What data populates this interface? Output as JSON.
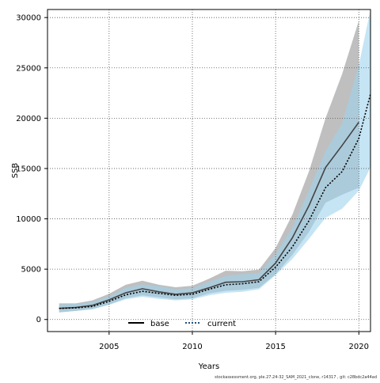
{
  "chart_data": {
    "type": "line",
    "xlabel": "Years",
    "ylabel": "SSB",
    "xlim": [
      2001.3,
      2020.7
    ],
    "ylim": [
      -1200,
      30800
    ],
    "x_ticks": [
      2005,
      2010,
      2015,
      2020
    ],
    "y_ticks": [
      0,
      5000,
      10000,
      15000,
      20000,
      25000,
      30000
    ],
    "grid": true,
    "legend_position": "bottom-left",
    "footer": "stockassessment.org, ple.27.24-32_SAM_2021_clone, r14317 , git: c28bdc2a44ad",
    "series": [
      {
        "name": "base",
        "color": "#444444",
        "band_color": "#bfbfbf",
        "line_style": "solid",
        "x": [
          2002,
          2003,
          2004,
          2005,
          2006,
          2007,
          2008,
          2009,
          2010,
          2011,
          2012,
          2013,
          2014,
          2015,
          2016,
          2017,
          2018,
          2019,
          2020
        ],
        "values": [
          1100,
          1200,
          1400,
          1950,
          2650,
          3050,
          2750,
          2500,
          2650,
          3150,
          3700,
          3750,
          3950,
          5600,
          8100,
          11300,
          15100,
          17300,
          19600
        ],
        "lower": [
          700,
          850,
          1050,
          1500,
          2100,
          2400,
          2200,
          2000,
          2100,
          2600,
          2850,
          2950,
          3150,
          4500,
          6400,
          8700,
          11600,
          12400,
          13100
        ],
        "upper": [
          1600,
          1600,
          1900,
          2550,
          3450,
          3850,
          3450,
          3200,
          3350,
          4050,
          4850,
          4800,
          4950,
          7100,
          10400,
          14700,
          20000,
          24400,
          29700
        ]
      },
      {
        "name": "current",
        "color": "#1f4e79",
        "band_color": "#9fd3ee",
        "line_style": "dotted",
        "x": [
          2002,
          2003,
          2004,
          2005,
          2006,
          2007,
          2008,
          2009,
          2010,
          2011,
          2012,
          2013,
          2014,
          2015,
          2016,
          2017,
          2018,
          2019,
          2020,
          2020.7
        ],
        "values": [
          1100,
          1150,
          1300,
          1800,
          2450,
          2800,
          2600,
          2400,
          2500,
          3000,
          3450,
          3550,
          3750,
          5200,
          7200,
          9800,
          13100,
          14700,
          18000,
          22400
        ],
        "lower": [
          700,
          850,
          1000,
          1450,
          2000,
          2250,
          2050,
          1900,
          2000,
          2400,
          2650,
          2750,
          3000,
          4400,
          6000,
          8000,
          10100,
          11000,
          12800,
          15100
        ],
        "upper": [
          1500,
          1550,
          1750,
          2300,
          3150,
          3500,
          3300,
          3000,
          3100,
          3750,
          4300,
          4500,
          4600,
          6500,
          9100,
          12800,
          16700,
          19500,
          25300,
          30800
        ]
      }
    ]
  }
}
